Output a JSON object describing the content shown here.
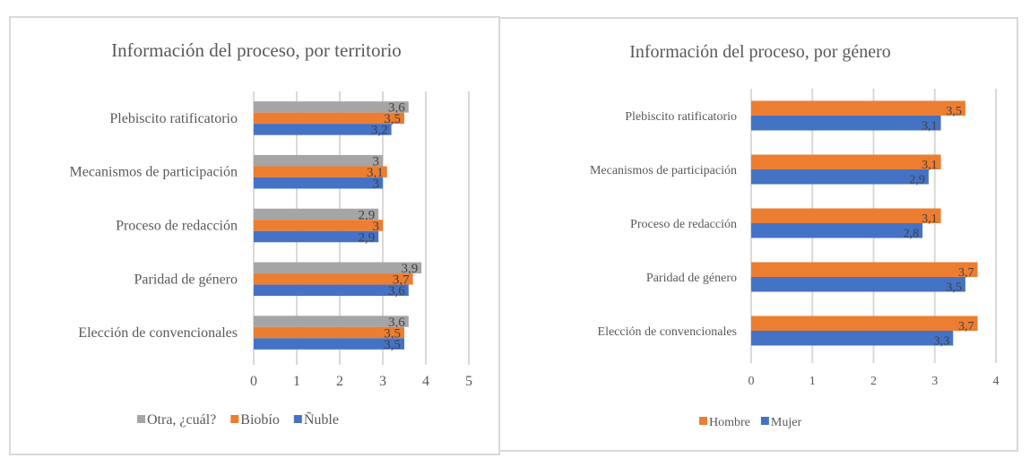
{
  "chart_data": [
    {
      "type": "bar",
      "orientation": "horizontal",
      "title": "Información del proceso, por territorio",
      "xlabel": "",
      "ylabel": "",
      "categories": [
        "Plebiscito ratificatorio",
        "Mecanismos de participación",
        "Proceso de redacción",
        "Paridad de género",
        "Elección de convencionales"
      ],
      "series": [
        {
          "name": "Otra, ¿cuál?",
          "color": "#a5a5a5",
          "values": [
            3.6,
            3.0,
            2.9,
            3.9,
            3.6
          ],
          "labels": [
            "3,6",
            "3",
            "2,9",
            "3,9",
            "3,6"
          ]
        },
        {
          "name": "Biobío",
          "color": "#ed7d31",
          "values": [
            3.5,
            3.1,
            3.0,
            3.7,
            3.5
          ],
          "labels": [
            "3,5",
            "3,1",
            "3",
            "3,7",
            "3,5"
          ]
        },
        {
          "name": "Ñuble",
          "color": "#4472c4",
          "values": [
            3.2,
            3.0,
            2.9,
            3.6,
            3.5
          ],
          "labels": [
            "3,2",
            "3",
            "2,9",
            "3,6",
            "3,5"
          ]
        }
      ],
      "xlim": [
        0,
        5
      ],
      "xticks": [
        "0",
        "1",
        "2",
        "3",
        "4",
        "5"
      ],
      "grid": true,
      "legend": {
        "position": "bottom",
        "items": [
          "Otra, ¿cuál?",
          "Biobío",
          "Ñuble"
        ]
      }
    },
    {
      "type": "bar",
      "orientation": "horizontal",
      "title": "Información del proceso, por género",
      "xlabel": "",
      "ylabel": "",
      "categories": [
        "Plebiscito ratificatorio",
        "Mecanismos de participación",
        "Proceso de redacción",
        "Paridad de género",
        "Elección de convencionales"
      ],
      "series": [
        {
          "name": "Hombre",
          "color": "#ed7d31",
          "values": [
            3.5,
            3.1,
            3.1,
            3.7,
            3.7
          ],
          "labels": [
            "3,5",
            "3,1",
            "3,1",
            "3,7",
            "3,7"
          ]
        },
        {
          "name": "Mujer",
          "color": "#4472c4",
          "values": [
            3.1,
            2.9,
            2.8,
            3.5,
            3.3
          ],
          "labels": [
            "3,1",
            "2,9",
            "2,8",
            "3,5",
            "3,3"
          ]
        }
      ],
      "xlim": [
        0,
        4
      ],
      "xticks": [
        "0",
        "1",
        "2",
        "3",
        "4"
      ],
      "grid": true,
      "legend": {
        "position": "bottom-left",
        "items": [
          "Hombre",
          "Mujer"
        ]
      }
    }
  ]
}
